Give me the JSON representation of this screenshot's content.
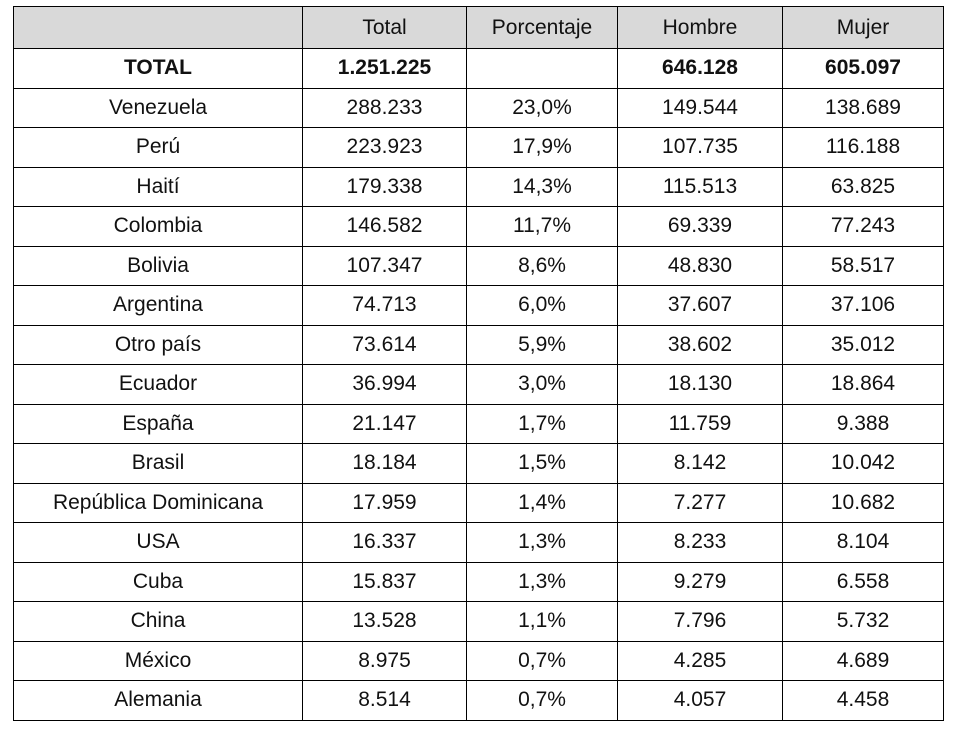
{
  "table": {
    "headers": [
      "",
      "Total",
      "Porcentaje",
      "Hombre",
      "Mujer"
    ],
    "total_row": [
      "TOTAL",
      "1.251.225",
      "",
      "646.128",
      "605.097"
    ],
    "rows": [
      [
        "Venezuela",
        "288.233",
        "23,0%",
        "149.544",
        "138.689"
      ],
      [
        "Perú",
        "223.923",
        "17,9%",
        "107.735",
        "116.188"
      ],
      [
        "Haití",
        "179.338",
        "14,3%",
        "115.513",
        "63.825"
      ],
      [
        "Colombia",
        "146.582",
        "11,7%",
        "69.339",
        "77.243"
      ],
      [
        "Bolivia",
        "107.347",
        "8,6%",
        "48.830",
        "58.517"
      ],
      [
        "Argentina",
        "74.713",
        "6,0%",
        "37.607",
        "37.106"
      ],
      [
        "Otro país",
        "73.614",
        "5,9%",
        "38.602",
        "35.012"
      ],
      [
        "Ecuador",
        "36.994",
        "3,0%",
        "18.130",
        "18.864"
      ],
      [
        "España",
        "21.147",
        "1,7%",
        "11.759",
        "9.388"
      ],
      [
        "Brasil",
        "18.184",
        "1,5%",
        "8.142",
        "10.042"
      ],
      [
        "República Dominicana",
        "17.959",
        "1,4%",
        "7.277",
        "10.682"
      ],
      [
        "USA",
        "16.337",
        "1,3%",
        "8.233",
        "8.104"
      ],
      [
        "Cuba",
        "15.837",
        "1,3%",
        "9.279",
        "6.558"
      ],
      [
        "China",
        "13.528",
        "1,1%",
        "7.796",
        "5.732"
      ],
      [
        "México",
        "8.975",
        "0,7%",
        "4.285",
        "4.689"
      ],
      [
        "Alemania",
        "8.514",
        "0,7%",
        "4.057",
        "4.458"
      ]
    ]
  },
  "colors": {
    "header_bg": "#d9d9d9",
    "border": "#000000"
  }
}
